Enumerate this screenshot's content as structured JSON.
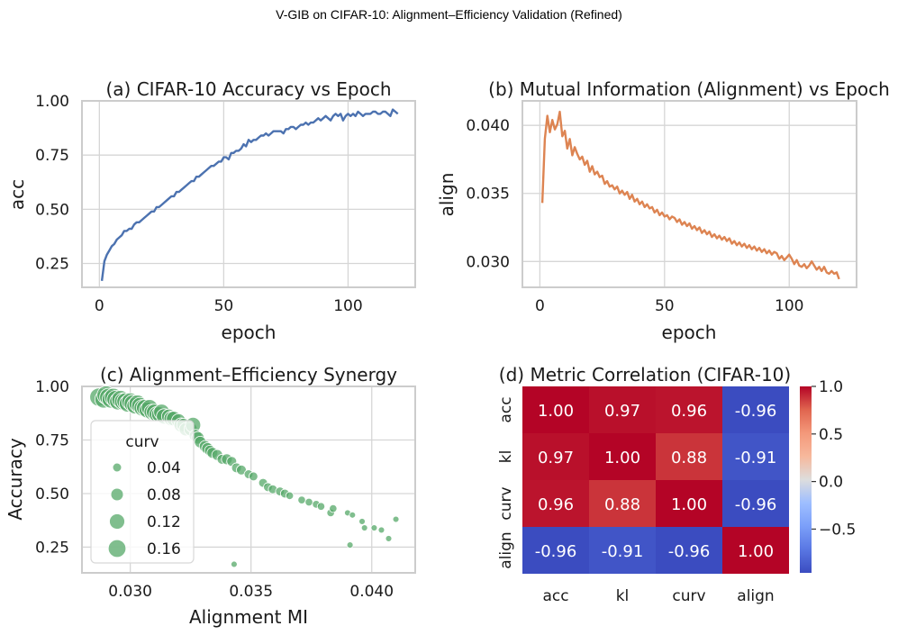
{
  "suptitle": "V-GIB on CIFAR-10: Alignment–Efficiency Validation (Refined)",
  "chart_data": [
    {
      "type": "line",
      "title": "(a) CIFAR-10 Accuracy vs Epoch",
      "xlabel": "epoch",
      "ylabel": "acc",
      "xlim": [
        -7,
        127
      ],
      "ylim": [
        0.14,
        1.0
      ],
      "xticks": [
        0,
        50,
        100
      ],
      "yticks": [
        0.25,
        0.5,
        0.75,
        1.0
      ],
      "xtick_labels": [
        "0",
        "50",
        "100"
      ],
      "ytick_labels": [
        "0.25",
        "0.50",
        "0.75",
        "1.00"
      ],
      "color": "#4c72b0",
      "x": [
        1,
        2,
        3,
        4,
        5,
        6,
        7,
        8,
        9,
        10,
        11,
        12,
        13,
        14,
        15,
        16,
        17,
        18,
        19,
        20,
        21,
        22,
        23,
        24,
        25,
        26,
        27,
        28,
        29,
        30,
        31,
        32,
        33,
        34,
        35,
        36,
        37,
        38,
        39,
        40,
        41,
        42,
        43,
        44,
        45,
        46,
        47,
        48,
        49,
        50,
        51,
        52,
        53,
        54,
        55,
        56,
        57,
        58,
        59,
        60,
        61,
        62,
        63,
        64,
        65,
        66,
        67,
        68,
        69,
        70,
        71,
        72,
        73,
        74,
        75,
        76,
        77,
        78,
        79,
        80,
        81,
        82,
        83,
        84,
        85,
        86,
        87,
        88,
        89,
        90,
        91,
        92,
        93,
        94,
        95,
        96,
        97,
        98,
        99,
        100,
        101,
        102,
        103,
        104,
        105,
        106,
        107,
        108,
        109,
        110,
        111,
        112,
        113,
        114,
        115,
        116,
        117,
        118,
        119,
        120
      ],
      "values": [
        0.17,
        0.26,
        0.29,
        0.31,
        0.33,
        0.34,
        0.36,
        0.37,
        0.38,
        0.4,
        0.4,
        0.41,
        0.41,
        0.43,
        0.44,
        0.44,
        0.45,
        0.46,
        0.47,
        0.48,
        0.49,
        0.49,
        0.51,
        0.51,
        0.52,
        0.53,
        0.54,
        0.55,
        0.56,
        0.56,
        0.58,
        0.58,
        0.59,
        0.6,
        0.61,
        0.62,
        0.63,
        0.63,
        0.65,
        0.65,
        0.66,
        0.67,
        0.68,
        0.69,
        0.7,
        0.7,
        0.71,
        0.72,
        0.72,
        0.74,
        0.74,
        0.73,
        0.76,
        0.76,
        0.77,
        0.77,
        0.78,
        0.8,
        0.79,
        0.82,
        0.81,
        0.82,
        0.82,
        0.83,
        0.84,
        0.84,
        0.85,
        0.84,
        0.85,
        0.86,
        0.86,
        0.86,
        0.86,
        0.85,
        0.87,
        0.87,
        0.88,
        0.88,
        0.87,
        0.88,
        0.89,
        0.89,
        0.9,
        0.89,
        0.9,
        0.9,
        0.91,
        0.92,
        0.91,
        0.92,
        0.93,
        0.92,
        0.91,
        0.93,
        0.94,
        0.93,
        0.94,
        0.91,
        0.93,
        0.94,
        0.93,
        0.94,
        0.93,
        0.95,
        0.94,
        0.93,
        0.94,
        0.94,
        0.94,
        0.95,
        0.95,
        0.94,
        0.94,
        0.95,
        0.95,
        0.94,
        0.93,
        0.96,
        0.95,
        0.94
      ]
    },
    {
      "type": "line",
      "title": "(b) Mutual Information (Alignment) vs Epoch",
      "xlabel": "epoch",
      "ylabel": "align",
      "xlim": [
        -7,
        127
      ],
      "ylim": [
        0.0281,
        0.0418
      ],
      "xticks": [
        0,
        50,
        100
      ],
      "yticks": [
        0.03,
        0.035,
        0.04
      ],
      "xtick_labels": [
        "0",
        "50",
        "100"
      ],
      "ytick_labels": [
        "0.030",
        "0.035",
        "0.040"
      ],
      "color": "#dd8452",
      "x": [
        1,
        2,
        3,
        4,
        5,
        6,
        7,
        8,
        9,
        10,
        11,
        12,
        13,
        14,
        15,
        16,
        17,
        18,
        19,
        20,
        21,
        22,
        23,
        24,
        25,
        26,
        27,
        28,
        29,
        30,
        31,
        32,
        33,
        34,
        35,
        36,
        37,
        38,
        39,
        40,
        41,
        42,
        43,
        44,
        45,
        46,
        47,
        48,
        49,
        50,
        51,
        52,
        53,
        54,
        55,
        56,
        57,
        58,
        59,
        60,
        61,
        62,
        63,
        64,
        65,
        66,
        67,
        68,
        69,
        70,
        71,
        72,
        73,
        74,
        75,
        76,
        77,
        78,
        79,
        80,
        81,
        82,
        83,
        84,
        85,
        86,
        87,
        88,
        89,
        90,
        91,
        92,
        93,
        94,
        95,
        96,
        97,
        98,
        99,
        100,
        101,
        102,
        103,
        104,
        105,
        106,
        107,
        108,
        109,
        110,
        111,
        112,
        113,
        114,
        115,
        116,
        117,
        118,
        119,
        120
      ],
      "values": [
        0.0343,
        0.039,
        0.0407,
        0.0395,
        0.0404,
        0.0397,
        0.0401,
        0.041,
        0.0392,
        0.0396,
        0.0383,
        0.039,
        0.0378,
        0.0384,
        0.0379,
        0.0375,
        0.0377,
        0.0371,
        0.0374,
        0.0366,
        0.037,
        0.0364,
        0.0366,
        0.0362,
        0.0363,
        0.0357,
        0.0359,
        0.0355,
        0.0356,
        0.0353,
        0.0355,
        0.035,
        0.0352,
        0.0349,
        0.0351,
        0.0346,
        0.0349,
        0.0344,
        0.0346,
        0.0342,
        0.0344,
        0.034,
        0.0342,
        0.0339,
        0.034,
        0.0336,
        0.0338,
        0.0334,
        0.0336,
        0.0333,
        0.0334,
        0.0331,
        0.0333,
        0.0332,
        0.0329,
        0.0331,
        0.0327,
        0.0329,
        0.0326,
        0.0328,
        0.0324,
        0.0326,
        0.0323,
        0.0325,
        0.0321,
        0.0323,
        0.032,
        0.0322,
        0.0318,
        0.032,
        0.0317,
        0.0319,
        0.0316,
        0.0318,
        0.0315,
        0.0317,
        0.0313,
        0.0315,
        0.0312,
        0.0314,
        0.0311,
        0.0313,
        0.031,
        0.0312,
        0.0309,
        0.0311,
        0.0308,
        0.031,
        0.0307,
        0.0309,
        0.0306,
        0.0308,
        0.0305,
        0.0307,
        0.0306,
        0.0302,
        0.0304,
        0.0301,
        0.0303,
        0.0305,
        0.0302,
        0.0298,
        0.0301,
        0.0297,
        0.0296,
        0.0298,
        0.0295,
        0.0297,
        0.03,
        0.0297,
        0.0294,
        0.0296,
        0.0293,
        0.0296,
        0.0292,
        0.0291,
        0.0293,
        0.0291,
        0.0292,
        0.0287
      ]
    },
    {
      "type": "scatter",
      "title": "(c) Alignment–Efficiency Synergy",
      "xlabel": "Alignment MI",
      "ylabel": "Accuracy",
      "xlim": [
        0.028,
        0.0418
      ],
      "ylim": [
        0.13,
        1.0
      ],
      "xticks": [
        0.03,
        0.035,
        0.04
      ],
      "yticks": [
        0.25,
        0.5,
        0.75,
        1.0
      ],
      "xtick_labels": [
        "0.030",
        "0.035",
        "0.040"
      ],
      "ytick_labels": [
        "0.25",
        "0.50",
        "0.75",
        "1.00"
      ],
      "color": "#55a868",
      "size_by": "curv",
      "legend": {
        "title": "curv",
        "placement": "center-left",
        "entries": [
          {
            "label": "0.04",
            "value": 0.04
          },
          {
            "label": "0.08",
            "value": 0.08
          },
          {
            "label": "0.12",
            "value": 0.12
          },
          {
            "label": "0.16",
            "value": 0.16
          }
        ]
      },
      "points": [
        {
          "x": 0.0287,
          "y": 0.95,
          "curv": 0.17
        },
        {
          "x": 0.0289,
          "y": 0.94,
          "curv": 0.16
        },
        {
          "x": 0.029,
          "y": 0.96,
          "curv": 0.17
        },
        {
          "x": 0.0291,
          "y": 0.95,
          "curv": 0.16
        },
        {
          "x": 0.0292,
          "y": 0.94,
          "curv": 0.16
        },
        {
          "x": 0.0293,
          "y": 0.95,
          "curv": 0.16
        },
        {
          "x": 0.0294,
          "y": 0.94,
          "curv": 0.16
        },
        {
          "x": 0.0295,
          "y": 0.93,
          "curv": 0.15
        },
        {
          "x": 0.0296,
          "y": 0.94,
          "curv": 0.16
        },
        {
          "x": 0.0297,
          "y": 0.93,
          "curv": 0.15
        },
        {
          "x": 0.0298,
          "y": 0.93,
          "curv": 0.15
        },
        {
          "x": 0.0299,
          "y": 0.92,
          "curv": 0.15
        },
        {
          "x": 0.03,
          "y": 0.93,
          "curv": 0.15
        },
        {
          "x": 0.0301,
          "y": 0.92,
          "curv": 0.15
        },
        {
          "x": 0.0302,
          "y": 0.91,
          "curv": 0.14
        },
        {
          "x": 0.0303,
          "y": 0.92,
          "curv": 0.15
        },
        {
          "x": 0.0304,
          "y": 0.91,
          "curv": 0.14
        },
        {
          "x": 0.0305,
          "y": 0.9,
          "curv": 0.14
        },
        {
          "x": 0.0306,
          "y": 0.9,
          "curv": 0.14
        },
        {
          "x": 0.0307,
          "y": 0.89,
          "curv": 0.13
        },
        {
          "x": 0.0308,
          "y": 0.9,
          "curv": 0.14
        },
        {
          "x": 0.0309,
          "y": 0.88,
          "curv": 0.13
        },
        {
          "x": 0.031,
          "y": 0.88,
          "curv": 0.13
        },
        {
          "x": 0.0311,
          "y": 0.87,
          "curv": 0.12
        },
        {
          "x": 0.0312,
          "y": 0.87,
          "curv": 0.12
        },
        {
          "x": 0.0313,
          "y": 0.88,
          "curv": 0.13
        },
        {
          "x": 0.0314,
          "y": 0.86,
          "curv": 0.12
        },
        {
          "x": 0.0316,
          "y": 0.86,
          "curv": 0.11
        },
        {
          "x": 0.0317,
          "y": 0.85,
          "curv": 0.11
        },
        {
          "x": 0.0318,
          "y": 0.85,
          "curv": 0.11
        },
        {
          "x": 0.032,
          "y": 0.84,
          "curv": 0.1
        },
        {
          "x": 0.0321,
          "y": 0.82,
          "curv": 0.1
        },
        {
          "x": 0.0322,
          "y": 0.82,
          "curv": 0.09
        },
        {
          "x": 0.0323,
          "y": 0.8,
          "curv": 0.09
        },
        {
          "x": 0.0325,
          "y": 0.8,
          "curv": 0.09
        },
        {
          "x": 0.0326,
          "y": 0.82,
          "curv": 0.12
        },
        {
          "x": 0.0327,
          "y": 0.77,
          "curv": 0.08
        },
        {
          "x": 0.0328,
          "y": 0.76,
          "curv": 0.08
        },
        {
          "x": 0.0329,
          "y": 0.74,
          "curv": 0.07
        },
        {
          "x": 0.0331,
          "y": 0.72,
          "curv": 0.07
        },
        {
          "x": 0.0332,
          "y": 0.71,
          "curv": 0.07
        },
        {
          "x": 0.0333,
          "y": 0.7,
          "curv": 0.06
        },
        {
          "x": 0.0334,
          "y": 0.69,
          "curv": 0.06
        },
        {
          "x": 0.0336,
          "y": 0.68,
          "curv": 0.06
        },
        {
          "x": 0.0338,
          "y": 0.66,
          "curv": 0.05
        },
        {
          "x": 0.034,
          "y": 0.66,
          "curv": 0.06
        },
        {
          "x": 0.0342,
          "y": 0.65,
          "curv": 0.05
        },
        {
          "x": 0.0344,
          "y": 0.62,
          "curv": 0.05
        },
        {
          "x": 0.0346,
          "y": 0.61,
          "curv": 0.05
        },
        {
          "x": 0.0349,
          "y": 0.59,
          "curv": 0.04
        },
        {
          "x": 0.0351,
          "y": 0.58,
          "curv": 0.04
        },
        {
          "x": 0.0355,
          "y": 0.55,
          "curv": 0.04
        },
        {
          "x": 0.0357,
          "y": 0.53,
          "curv": 0.04
        },
        {
          "x": 0.0359,
          "y": 0.52,
          "curv": 0.04
        },
        {
          "x": 0.0362,
          "y": 0.51,
          "curv": 0.04
        },
        {
          "x": 0.0364,
          "y": 0.5,
          "curv": 0.04
        },
        {
          "x": 0.0366,
          "y": 0.49,
          "curv": 0.03
        },
        {
          "x": 0.0371,
          "y": 0.47,
          "curv": 0.03
        },
        {
          "x": 0.0374,
          "y": 0.46,
          "curv": 0.03
        },
        {
          "x": 0.0377,
          "y": 0.45,
          "curv": 0.03
        },
        {
          "x": 0.0379,
          "y": 0.44,
          "curv": 0.03
        },
        {
          "x": 0.0383,
          "y": 0.41,
          "curv": 0.03
        },
        {
          "x": 0.0384,
          "y": 0.43,
          "curv": 0.03
        },
        {
          "x": 0.039,
          "y": 0.41,
          "curv": 0.02
        },
        {
          "x": 0.0392,
          "y": 0.4,
          "curv": 0.02
        },
        {
          "x": 0.0396,
          "y": 0.37,
          "curv": 0.02
        },
        {
          "x": 0.0397,
          "y": 0.34,
          "curv": 0.02
        },
        {
          "x": 0.0401,
          "y": 0.34,
          "curv": 0.02
        },
        {
          "x": 0.0404,
          "y": 0.33,
          "curv": 0.02
        },
        {
          "x": 0.0407,
          "y": 0.29,
          "curv": 0.02
        },
        {
          "x": 0.041,
          "y": 0.38,
          "curv": 0.02
        },
        {
          "x": 0.0391,
          "y": 0.26,
          "curv": 0.02
        },
        {
          "x": 0.0343,
          "y": 0.17,
          "curv": 0.02
        }
      ]
    },
    {
      "type": "heatmap",
      "title": "(d) Metric Correlation (CIFAR-10)",
      "rows": [
        "acc",
        "kl",
        "curv",
        "align"
      ],
      "cols": [
        "acc",
        "kl",
        "curv",
        "align"
      ],
      "values": [
        [
          1.0,
          0.97,
          0.96,
          -0.96
        ],
        [
          0.97,
          1.0,
          0.88,
          -0.91
        ],
        [
          0.96,
          0.88,
          1.0,
          -0.96
        ],
        [
          -0.96,
          -0.91,
          -0.96,
          1.0
        ]
      ],
      "labels": [
        [
          "1.00",
          "0.97",
          "0.96",
          "-0.96"
        ],
        [
          "0.97",
          "1.00",
          "0.88",
          "-0.91"
        ],
        [
          "0.96",
          "0.88",
          "1.00",
          "-0.96"
        ],
        [
          "-0.96",
          "-0.91",
          "-0.96",
          "1.00"
        ]
      ],
      "vmin": -0.96,
      "vmax": 1.0,
      "colormap": "coolwarm",
      "colorbar_ticks": [
        1.0,
        0.5,
        0.0,
        -0.5
      ],
      "colorbar_labels": [
        "1.0",
        "0.5",
        "0.0",
        "−0.5"
      ]
    }
  ]
}
